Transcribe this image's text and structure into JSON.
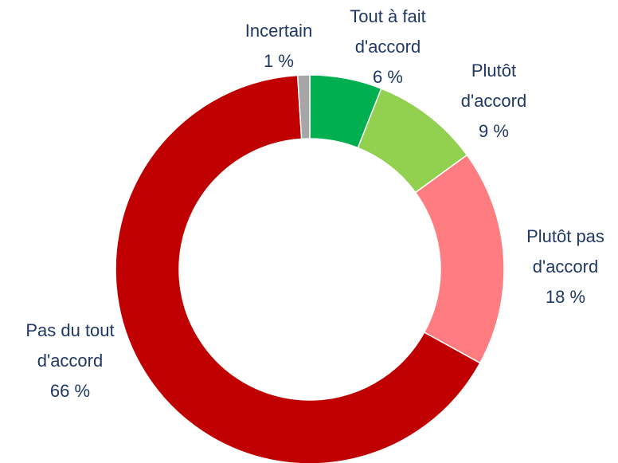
{
  "chart_data": {
    "type": "donut",
    "categories": [
      "Tout à fait d'accord",
      "Plutôt d'accord",
      "Plutôt pas d'accord",
      "Pas du tout d'accord",
      "Incertain"
    ],
    "values": [
      6,
      9,
      18,
      66,
      1
    ],
    "value_labels": [
      "6 %",
      "9 %",
      "18 %",
      "66 %",
      "1 %"
    ],
    "colors": [
      "#00b050",
      "#92d050",
      "#ff7c80",
      "#c00000",
      "#a6a6a6"
    ]
  }
}
